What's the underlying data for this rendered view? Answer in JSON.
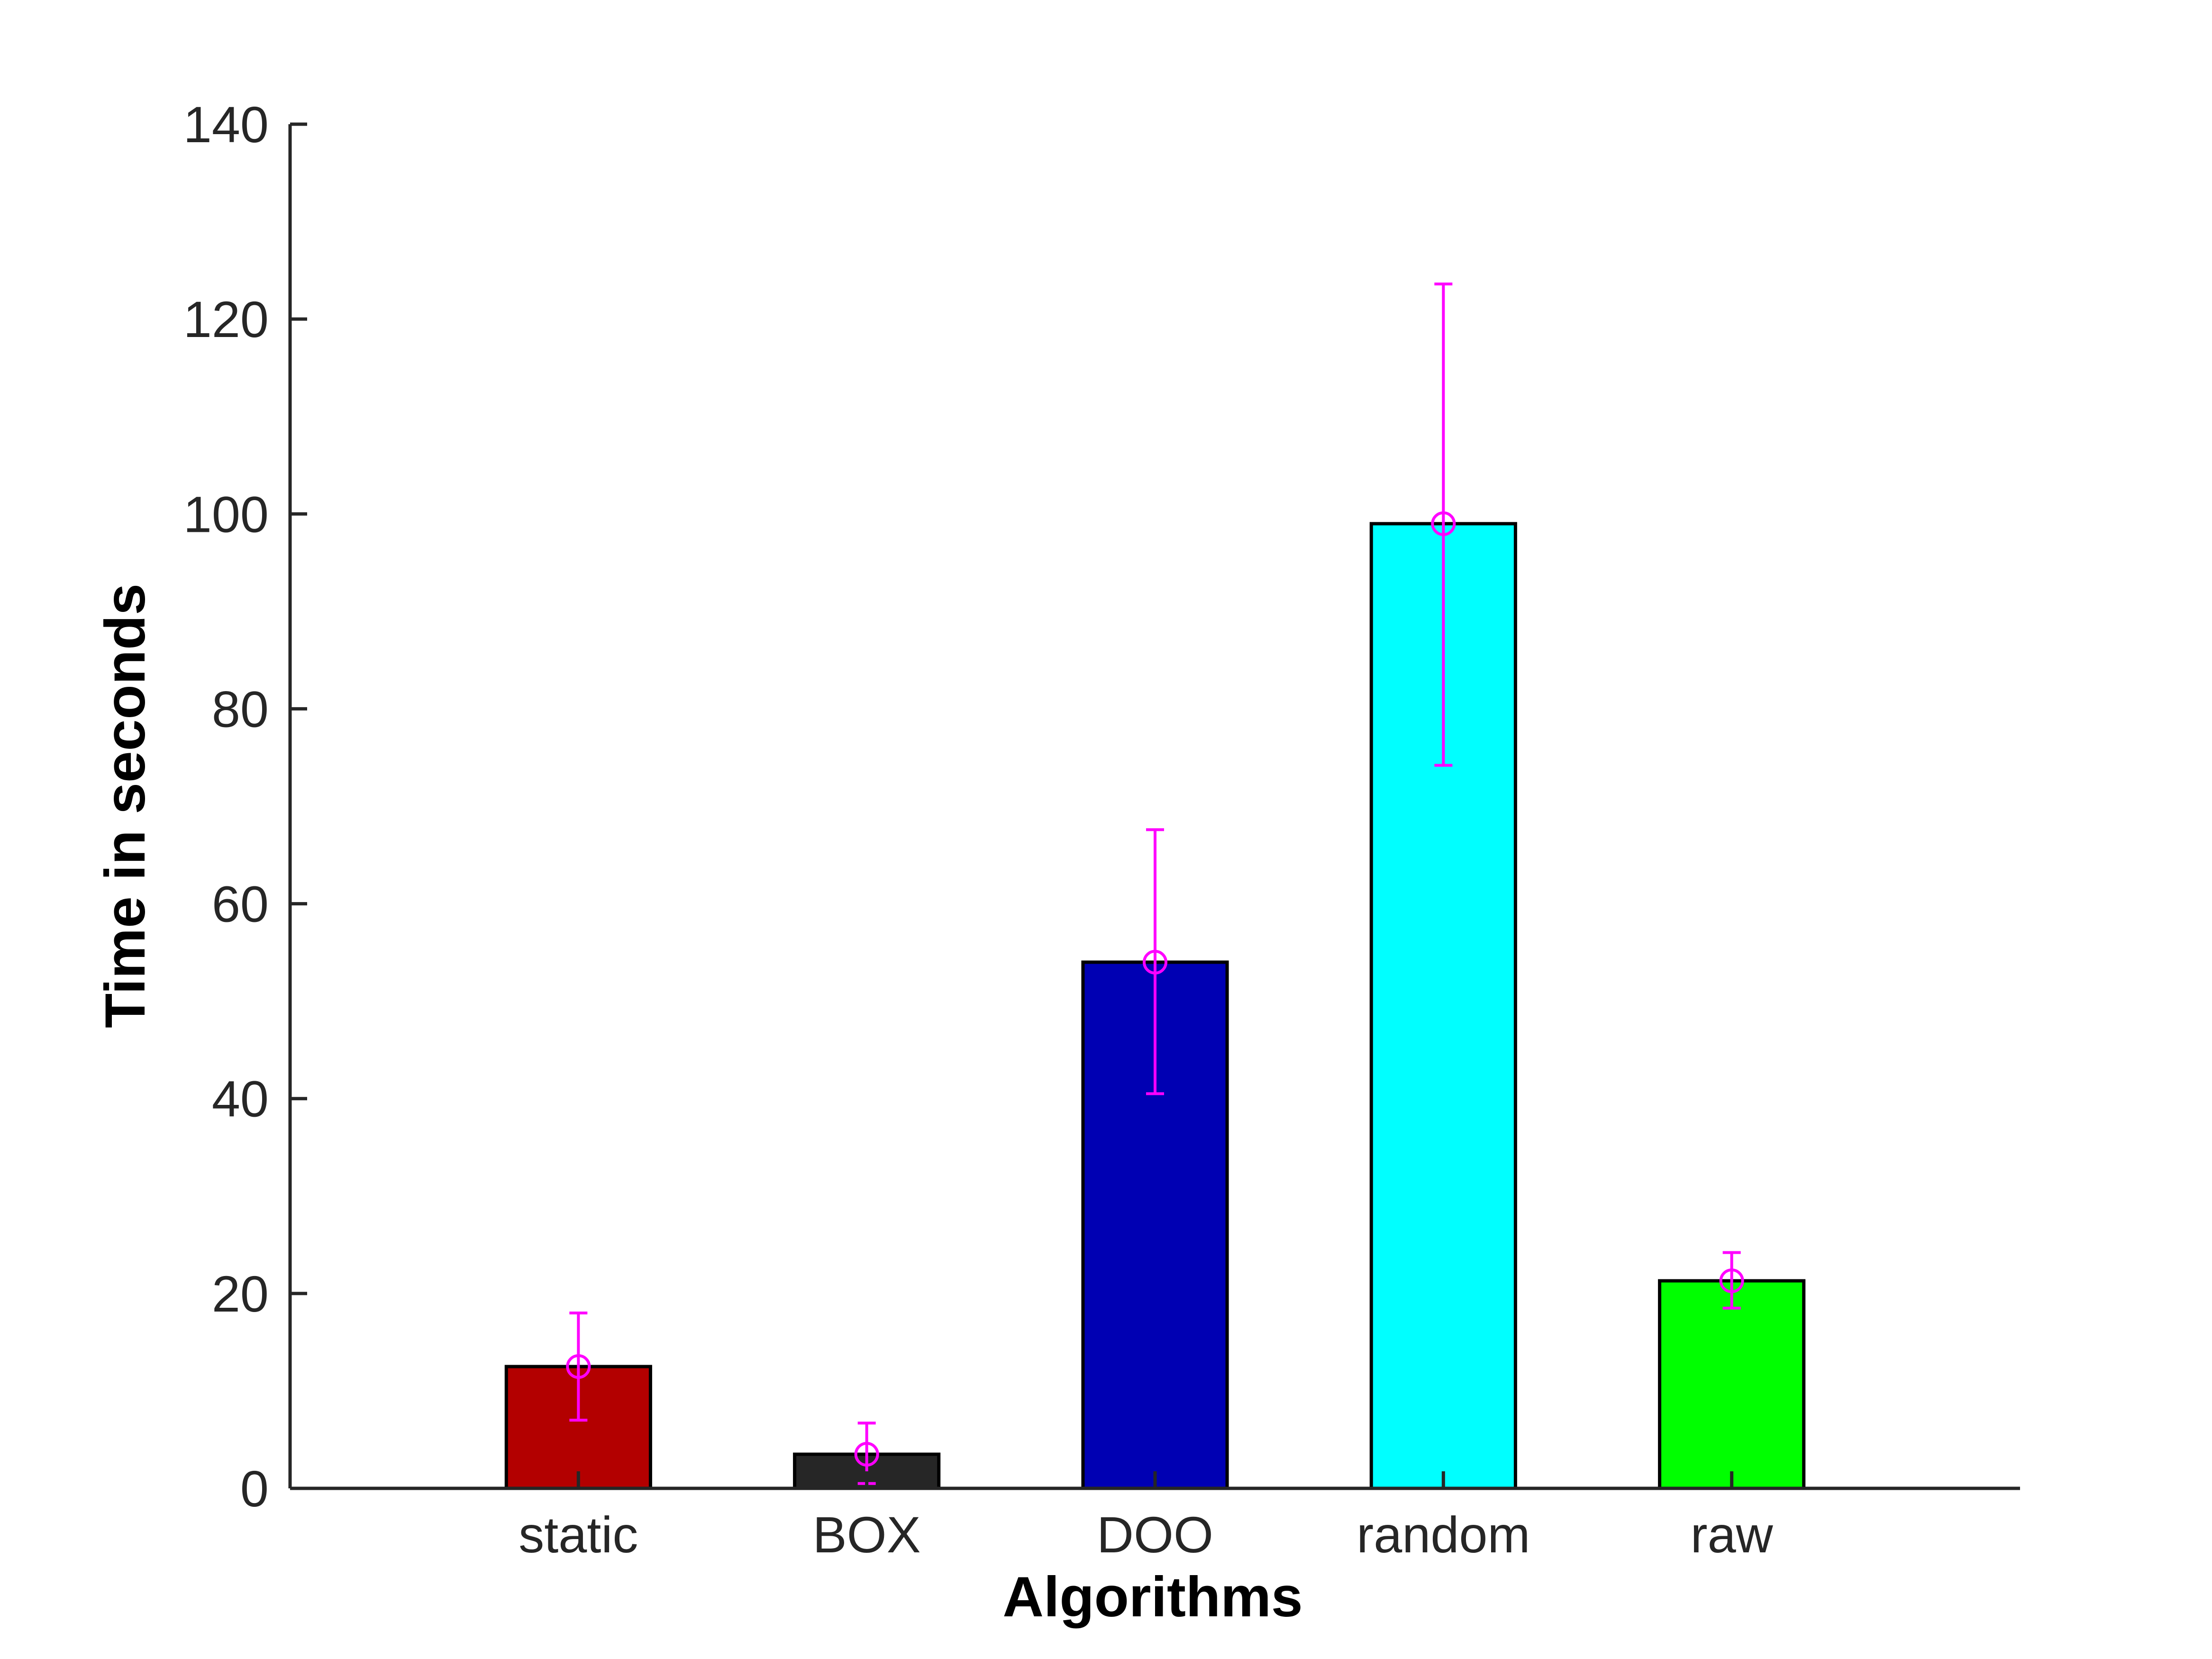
{
  "chart_data": {
    "type": "bar",
    "title": "",
    "xlabel": "Algorithms",
    "ylabel": "Time in seconds",
    "ylim": [
      0,
      140
    ],
    "yticks": [
      0,
      20,
      40,
      60,
      80,
      100,
      120,
      140
    ],
    "categories": [
      "static",
      "BOX",
      "DOO",
      "random",
      "raw"
    ],
    "values": [
      12.5,
      3.5,
      54,
      99,
      21.3
    ],
    "error_low": [
      7.0,
      0.5,
      40.5,
      74.2,
      18.5
    ],
    "error_high": [
      18.0,
      6.7,
      67.6,
      123.6,
      24.2
    ],
    "bar_colors": [
      "#b30000",
      "#262626",
      "#0000b3",
      "#00ffff",
      "#00ff00"
    ],
    "error_color": "#ff00ff",
    "grid": false,
    "legend": "none"
  }
}
